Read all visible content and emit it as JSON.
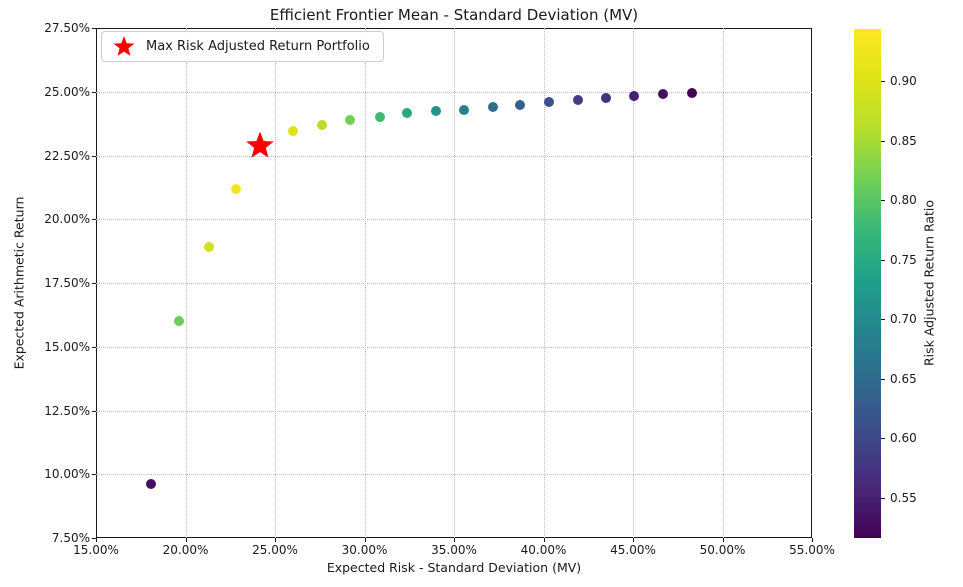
{
  "chart_data": {
    "type": "scatter",
    "title": "Efficient Frontier Mean - Standard Deviation (MV)",
    "xlabel": "Expected Risk - Standard Deviation (MV)",
    "ylabel": "Expected Arithmetic Return",
    "xlim": [
      15,
      55
    ],
    "ylim": [
      7.5,
      27.5
    ],
    "grid": true,
    "x_ticks": {
      "values": [
        15,
        20,
        25,
        30,
        35,
        40,
        45,
        50,
        55
      ],
      "labels": [
        "15.00%",
        "20.00%",
        "25.00%",
        "30.00%",
        "35.00%",
        "40.00%",
        "45.00%",
        "50.00%",
        "55.00%"
      ]
    },
    "y_ticks": {
      "values": [
        7.5,
        10,
        12.5,
        15,
        17.5,
        20,
        22.5,
        25,
        27.5
      ],
      "labels": [
        "7.50%",
        "10.00%",
        "12.50%",
        "15.00%",
        "17.50%",
        "20.00%",
        "22.50%",
        "25.00%",
        "27.50%"
      ]
    },
    "points": [
      {
        "risk": 18.1,
        "return": 9.6,
        "ratio": 0.53
      },
      {
        "risk": 19.65,
        "return": 16.0,
        "ratio": 0.814
      },
      {
        "risk": 21.3,
        "return": 18.9,
        "ratio": 0.887
      },
      {
        "risk": 22.8,
        "return": 21.2,
        "ratio": 0.93
      },
      {
        "risk": 24.25,
        "return": 22.95,
        "ratio": 0.944
      },
      {
        "risk": 26.0,
        "return": 23.45,
        "ratio": 0.901
      },
      {
        "risk": 27.6,
        "return": 23.7,
        "ratio": 0.859
      },
      {
        "risk": 29.2,
        "return": 23.9,
        "ratio": 0.818
      },
      {
        "risk": 30.85,
        "return": 24.0,
        "ratio": 0.778
      },
      {
        "risk": 32.4,
        "return": 24.15,
        "ratio": 0.745
      },
      {
        "risk": 34.0,
        "return": 24.25,
        "ratio": 0.713
      },
      {
        "risk": 35.55,
        "return": 24.3,
        "ratio": 0.684
      },
      {
        "risk": 37.2,
        "return": 24.4,
        "ratio": 0.656
      },
      {
        "risk": 38.7,
        "return": 24.5,
        "ratio": 0.633
      },
      {
        "risk": 40.3,
        "return": 24.6,
        "ratio": 0.61
      },
      {
        "risk": 41.9,
        "return": 24.68,
        "ratio": 0.589
      },
      {
        "risk": 43.5,
        "return": 24.75,
        "ratio": 0.569
      },
      {
        "risk": 45.05,
        "return": 24.83,
        "ratio": 0.551
      },
      {
        "risk": 46.7,
        "return": 24.9,
        "ratio": 0.533
      },
      {
        "risk": 48.3,
        "return": 24.95,
        "ratio": 0.517
      }
    ],
    "max_risk_adjusted_point": {
      "risk": 24.25,
      "return": 22.95,
      "ratio": 0.944
    },
    "legend": {
      "position": "upper left",
      "entries": [
        {
          "label": "Max Risk Adjusted Return Portfolio",
          "marker": "star",
          "color": "#ff0000"
        }
      ]
    },
    "colorbar": {
      "label": "Risk Adjusted Return Ratio",
      "colormap": "viridis",
      "vmin": 0.516,
      "vmax": 0.944,
      "ticks": [
        0.9,
        0.85,
        0.8,
        0.75,
        0.7,
        0.65,
        0.6,
        0.55
      ],
      "tick_labels": [
        "0.90",
        "0.85",
        "0.80",
        "0.75",
        "0.70",
        "0.65",
        "0.60",
        "0.55"
      ]
    },
    "colors": {
      "star": "#ff0000",
      "grid": "#bdbdbd",
      "text": "#1a1a1a",
      "viridis_stops": [
        "#440154",
        "#482878",
        "#3e4989",
        "#31688e",
        "#26828e",
        "#1f9e89",
        "#35b779",
        "#6ece58",
        "#b5de2b",
        "#dfe318",
        "#fde725"
      ]
    }
  }
}
